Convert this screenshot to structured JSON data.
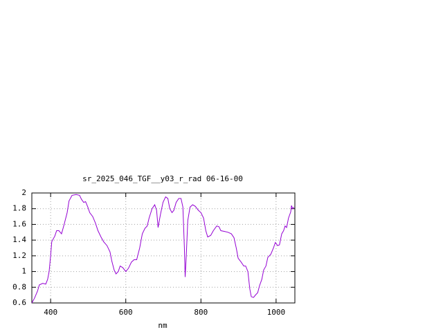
{
  "chart_data": {
    "type": "line",
    "title": "sr_2025_046_TGF__y03_r_rad 06-16-00",
    "xlabel": "nm",
    "x": [
      350,
      357,
      365,
      370,
      379,
      387,
      392,
      396,
      400,
      403,
      411,
      416,
      422,
      429,
      436,
      444,
      449,
      457,
      468,
      477,
      482,
      488,
      493,
      499,
      504,
      512,
      519,
      526,
      534,
      541,
      550,
      558,
      563,
      569,
      574,
      580,
      585,
      592,
      600,
      607,
      615,
      622,
      629,
      637,
      644,
      651,
      657,
      662,
      670,
      677,
      682,
      686,
      692,
      699,
      706,
      712,
      717,
      723,
      728,
      734,
      741,
      747,
      752,
      756,
      758,
      761,
      765,
      771,
      778,
      785,
      793,
      800,
      807,
      813,
      818,
      826,
      833,
      842,
      848,
      853,
      863,
      872,
      881,
      888,
      894,
      899,
      907,
      914,
      919,
      925,
      930,
      934,
      940,
      945,
      951,
      956,
      962,
      967,
      973,
      978,
      986,
      993,
      998,
      1004,
      1009,
      1015,
      1020,
      1024,
      1028,
      1033,
      1039,
      1041,
      1044,
      1048
    ],
    "series": [
      {
        "color": "#9400d3",
        "values": [
          0.6,
          0.66,
          0.75,
          0.83,
          0.85,
          0.84,
          0.9,
          1.0,
          1.2,
          1.38,
          1.45,
          1.52,
          1.52,
          1.48,
          1.6,
          1.75,
          1.9,
          1.97,
          1.98,
          1.97,
          1.92,
          1.88,
          1.89,
          1.82,
          1.75,
          1.7,
          1.62,
          1.52,
          1.44,
          1.38,
          1.33,
          1.25,
          1.13,
          1.02,
          0.97,
          1.0,
          1.07,
          1.05,
          1.0,
          1.04,
          1.12,
          1.15,
          1.15,
          1.3,
          1.48,
          1.55,
          1.58,
          1.68,
          1.8,
          1.85,
          1.78,
          1.56,
          1.72,
          1.88,
          1.95,
          1.93,
          1.8,
          1.75,
          1.78,
          1.88,
          1.93,
          1.93,
          1.82,
          1.3,
          0.93,
          1.2,
          1.65,
          1.82,
          1.85,
          1.83,
          1.78,
          1.75,
          1.68,
          1.52,
          1.44,
          1.46,
          1.52,
          1.58,
          1.57,
          1.52,
          1.51,
          1.5,
          1.48,
          1.43,
          1.3,
          1.17,
          1.12,
          1.07,
          1.07,
          1.0,
          0.78,
          0.68,
          0.67,
          0.7,
          0.73,
          0.82,
          0.9,
          1.02,
          1.07,
          1.18,
          1.22,
          1.3,
          1.37,
          1.33,
          1.34,
          1.48,
          1.52,
          1.58,
          1.56,
          1.68,
          1.76,
          1.84,
          1.8,
          1.82
        ]
      }
    ],
    "xlim": [
      350,
      1050
    ],
    "xticks": [
      400,
      600,
      800,
      1000
    ],
    "ylim": [
      0.6,
      2
    ],
    "yticks": [
      0.6,
      0.8,
      1,
      1.2,
      1.4,
      1.6,
      1.8,
      2
    ],
    "grid": true
  }
}
